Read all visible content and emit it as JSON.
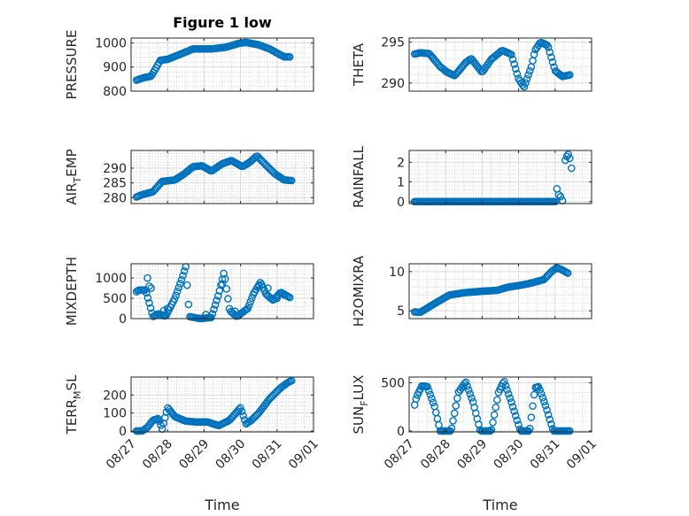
{
  "figure": {
    "title": "Figure 1 low"
  },
  "colors": {
    "marker": "#0072BD",
    "axis": "#262626",
    "grid": "#d6d6d6"
  },
  "chart_data": [
    {
      "id": "pressure",
      "type": "scatter",
      "marker": "circle",
      "title": "Figure 1 low",
      "ylabel": "PRESSURE",
      "ylabel_sub": "",
      "ylabel_rest": "",
      "xlabel": "",
      "show_xticklabels": false,
      "xlim": [
        0,
        5
      ],
      "ylim": [
        800,
        1020
      ],
      "yticks": [
        800,
        900,
        1000
      ],
      "ytick_labels": [
        "800",
        "900",
        "1000"
      ],
      "xticks": [
        0,
        1,
        2,
        3,
        4,
        5
      ],
      "xtick_labels": [
        "08/27",
        "08/28",
        "08/29",
        "08/30",
        "08/31",
        "09/01"
      ],
      "grid": true,
      "minor_grid": true,
      "x_start": 0.15,
      "x_end": 4.35,
      "curve": [
        [
          0,
          838
        ],
        [
          0.35,
          856
        ],
        [
          0.55,
          862
        ],
        [
          0.7,
          900
        ],
        [
          0.8,
          928
        ],
        [
          1.0,
          932
        ],
        [
          1.3,
          950
        ],
        [
          1.7,
          975
        ],
        [
          2.2,
          975
        ],
        [
          2.6,
          982
        ],
        [
          2.95,
          998
        ],
        [
          3.15,
          1002
        ],
        [
          3.5,
          992
        ],
        [
          3.8,
          975
        ],
        [
          4.0,
          958
        ],
        [
          4.2,
          942
        ]
      ]
    },
    {
      "id": "theta",
      "type": "scatter",
      "marker": "circle",
      "title": "",
      "ylabel": "THETA",
      "ylabel_sub": "",
      "ylabel_rest": "",
      "xlabel": "",
      "show_xticklabels": false,
      "xlim": [
        0,
        5
      ],
      "ylim": [
        289,
        295.5
      ],
      "yticks": [
        290,
        295
      ],
      "ytick_labels": [
        "290",
        "295"
      ],
      "xticks": [
        0,
        1,
        2,
        3,
        4,
        5
      ],
      "xtick_labels": [
        "08/27",
        "08/28",
        "08/29",
        "08/30",
        "08/31",
        "09/01"
      ],
      "grid": true,
      "minor_grid": true,
      "x_start": 0.15,
      "x_end": 4.4,
      "curve": [
        [
          0,
          293.4
        ],
        [
          0.3,
          293.7
        ],
        [
          0.55,
          293.6
        ],
        [
          0.85,
          292
        ],
        [
          1.05,
          291.3
        ],
        [
          1.25,
          290.9
        ],
        [
          1.55,
          292.5
        ],
        [
          1.7,
          293.0
        ],
        [
          2.0,
          291.3
        ],
        [
          2.25,
          292.9
        ],
        [
          2.55,
          294.0
        ],
        [
          2.8,
          293.5
        ],
        [
          3.0,
          290.5
        ],
        [
          3.15,
          289.5
        ],
        [
          3.35,
          292.0
        ],
        [
          3.45,
          294.0
        ],
        [
          3.6,
          295.0
        ],
        [
          3.8,
          294.6
        ],
        [
          4.0,
          291.5
        ],
        [
          4.2,
          290.8
        ],
        [
          4.4,
          291.0
        ]
      ]
    },
    {
      "id": "air_temp",
      "type": "scatter",
      "marker": "circle",
      "title": "",
      "ylabel": "AIR",
      "ylabel_sub": "T",
      "ylabel_rest": "EMP",
      "xlabel": "",
      "show_xticklabels": false,
      "xlim": [
        0,
        5
      ],
      "ylim": [
        278,
        296
      ],
      "yticks": [
        280,
        285,
        290
      ],
      "ytick_labels": [
        "280",
        "285",
        "290"
      ],
      "xticks": [
        0,
        1,
        2,
        3,
        4,
        5
      ],
      "xtick_labels": [
        "08/27",
        "08/28",
        "08/29",
        "08/30",
        "08/31",
        "09/01"
      ],
      "grid": true,
      "minor_grid": true,
      "x_start": 0.15,
      "x_end": 4.4,
      "curve": [
        [
          0,
          279.5
        ],
        [
          0.3,
          281.0
        ],
        [
          0.6,
          282.0
        ],
        [
          0.85,
          285.5
        ],
        [
          1.2,
          286.0
        ],
        [
          1.45,
          288.0
        ],
        [
          1.7,
          290.5
        ],
        [
          1.95,
          290.8
        ],
        [
          2.2,
          289.0
        ],
        [
          2.5,
          291.5
        ],
        [
          2.75,
          292.6
        ],
        [
          3.05,
          290.5
        ],
        [
          3.25,
          292.0
        ],
        [
          3.45,
          294.2
        ],
        [
          3.7,
          291.0
        ],
        [
          3.95,
          288.0
        ],
        [
          4.2,
          286.0
        ],
        [
          4.4,
          285.8
        ]
      ]
    },
    {
      "id": "rainfall",
      "type": "scatter",
      "marker": "circle",
      "title": "",
      "ylabel": "RAINFALL",
      "ylabel_sub": "",
      "ylabel_rest": "",
      "xlabel": "",
      "show_xticklabels": false,
      "xlim": [
        0,
        5
      ],
      "ylim": [
        -0.1,
        2.6
      ],
      "yticks": [
        0,
        1,
        2
      ],
      "ytick_labels": [
        "0",
        "1",
        "2"
      ],
      "xticks": [
        0,
        1,
        2,
        3,
        4,
        5
      ],
      "xtick_labels": [
        "08/27",
        "08/28",
        "08/29",
        "08/30",
        "08/31",
        "09/01"
      ],
      "grid": true,
      "minor_grid": true,
      "x_start": 0.15,
      "x_end": 4.0,
      "curve": [
        [
          0,
          0
        ],
        [
          4.0,
          0
        ]
      ],
      "extra_points": [
        [
          4.05,
          0.65
        ],
        [
          4.1,
          0.35
        ],
        [
          4.15,
          0.25
        ],
        [
          4.2,
          0.05
        ],
        [
          4.28,
          2.1
        ],
        [
          4.32,
          2.3
        ],
        [
          4.36,
          2.4
        ],
        [
          4.4,
          2.2
        ],
        [
          4.45,
          1.7
        ]
      ]
    },
    {
      "id": "mixdepth",
      "type": "scatter",
      "marker": "circle",
      "title": "",
      "ylabel": "MIXDEPTH",
      "ylabel_sub": "",
      "ylabel_rest": "",
      "xlabel": "",
      "show_xticklabels": false,
      "xlim": [
        0,
        5
      ],
      "ylim": [
        0,
        1350
      ],
      "yticks": [
        0,
        500,
        1000
      ],
      "ytick_labels": [
        "0",
        "500",
        "1000"
      ],
      "xticks": [
        0,
        1,
        2,
        3,
        4,
        5
      ],
      "xtick_labels": [
        "08/27",
        "08/28",
        "08/29",
        "08/30",
        "08/31",
        "09/01"
      ],
      "grid": true,
      "minor_grid": true,
      "x_start": 0.15,
      "x_end": 4.35,
      "curve": [
        [
          0,
          550
        ],
        [
          0.2,
          700
        ],
        [
          0.4,
          700
        ],
        [
          0.6,
          50
        ],
        [
          0.75,
          120
        ],
        [
          0.95,
          60
        ],
        [
          1.2,
          500
        ],
        [
          1.4,
          1000
        ],
        [
          1.5,
          1280
        ],
        [
          1.6,
          50
        ],
        [
          1.9,
          0
        ],
        [
          2.2,
          30
        ],
        [
          2.4,
          600
        ],
        [
          2.55,
          1150
        ],
        [
          2.7,
          200
        ],
        [
          2.9,
          50
        ],
        [
          3.2,
          250
        ],
        [
          3.35,
          600
        ],
        [
          3.55,
          900
        ],
        [
          3.7,
          600
        ],
        [
          3.9,
          450
        ],
        [
          4.1,
          650
        ],
        [
          4.35,
          520
        ]
      ],
      "extra_points": [
        [
          0.45,
          1000
        ],
        [
          0.5,
          800
        ],
        [
          0.55,
          750
        ],
        [
          0.9,
          200
        ],
        [
          1.0,
          250
        ],
        [
          2.05,
          100
        ],
        [
          2.5,
          850
        ],
        [
          2.85,
          180
        ],
        [
          3.5,
          800
        ],
        [
          3.75,
          750
        ],
        [
          4.0,
          500
        ],
        [
          4.2,
          580
        ]
      ]
    },
    {
      "id": "h2omixra",
      "type": "scatter",
      "marker": "circle",
      "title": "",
      "ylabel": "H2OMIXRA",
      "ylabel_sub": "",
      "ylabel_rest": "",
      "xlabel": "",
      "show_xticklabels": false,
      "xlim": [
        0,
        5
      ],
      "ylim": [
        4,
        11
      ],
      "yticks": [
        5,
        10
      ],
      "ytick_labels": [
        "5",
        "10"
      ],
      "xticks": [
        0,
        1,
        2,
        3,
        4,
        5
      ],
      "xtick_labels": [
        "08/27",
        "08/28",
        "08/29",
        "08/30",
        "08/31",
        "09/01"
      ],
      "grid": true,
      "minor_grid": true,
      "x_start": 0.15,
      "x_end": 4.35,
      "curve": [
        [
          0,
          4.9
        ],
        [
          0.3,
          4.8
        ],
        [
          0.55,
          5.5
        ],
        [
          0.8,
          6.2
        ],
        [
          1.1,
          7.0
        ],
        [
          1.5,
          7.3
        ],
        [
          2.0,
          7.5
        ],
        [
          2.4,
          7.6
        ],
        [
          2.7,
          8.0
        ],
        [
          3.1,
          8.3
        ],
        [
          3.4,
          8.6
        ],
        [
          3.7,
          9.0
        ],
        [
          3.9,
          10.0
        ],
        [
          4.05,
          10.5
        ],
        [
          4.2,
          10.2
        ],
        [
          4.35,
          9.8
        ]
      ]
    },
    {
      "id": "terr_msl",
      "type": "scatter",
      "marker": "circle",
      "title": "",
      "ylabel": "TERR",
      "ylabel_sub": "M",
      "ylabel_rest": "SL",
      "xlabel": "Time",
      "show_xticklabels": true,
      "xlim": [
        0,
        5
      ],
      "ylim": [
        -5,
        300
      ],
      "yticks": [
        0,
        100,
        200
      ],
      "ytick_labels": [
        "0",
        "100",
        "200"
      ],
      "xticks": [
        0,
        1,
        2,
        3,
        4,
        5
      ],
      "xtick_labels": [
        "08/27",
        "08/28",
        "08/29",
        "08/30",
        "08/31",
        "09/01"
      ],
      "grid": true,
      "minor_grid": true,
      "x_start": 0.15,
      "x_end": 4.4,
      "curve": [
        [
          0,
          0
        ],
        [
          0.3,
          0
        ],
        [
          0.45,
          20
        ],
        [
          0.6,
          60
        ],
        [
          0.75,
          70
        ],
        [
          0.85,
          10
        ],
        [
          1.0,
          130
        ],
        [
          1.2,
          80
        ],
        [
          1.5,
          55
        ],
        [
          1.8,
          50
        ],
        [
          2.1,
          50
        ],
        [
          2.4,
          30
        ],
        [
          2.7,
          60
        ],
        [
          3.0,
          130
        ],
        [
          3.15,
          40
        ],
        [
          3.3,
          60
        ],
        [
          3.5,
          100
        ],
        [
          3.8,
          180
        ],
        [
          4.1,
          240
        ],
        [
          4.3,
          270
        ],
        [
          4.4,
          280
        ]
      ]
    },
    {
      "id": "sun_flux",
      "type": "scatter",
      "marker": "circle",
      "title": "",
      "ylabel": "SUN",
      "ylabel_sub": "F",
      "ylabel_rest": "LUX",
      "xlabel": "Time",
      "show_xticklabels": true,
      "xlim": [
        0,
        5
      ],
      "ylim": [
        -10,
        560
      ],
      "yticks": [
        0,
        500
      ],
      "ytick_labels": [
        "0",
        "500"
      ],
      "xticks": [
        0,
        1,
        2,
        3,
        4,
        5
      ],
      "xtick_labels": [
        "08/27",
        "08/28",
        "08/29",
        "08/30",
        "08/31",
        "09/01"
      ],
      "grid": true,
      "minor_grid": true,
      "x_start": 0.15,
      "x_end": 4.4,
      "curve": [
        [
          0,
          30
        ],
        [
          0.2,
          350
        ],
        [
          0.35,
          470
        ],
        [
          0.5,
          460
        ],
        [
          0.7,
          250
        ],
        [
          0.85,
          0
        ],
        [
          1.15,
          0
        ],
        [
          1.35,
          400
        ],
        [
          1.55,
          510
        ],
        [
          1.75,
          300
        ],
        [
          1.95,
          0
        ],
        [
          2.25,
          0
        ],
        [
          2.45,
          400
        ],
        [
          2.6,
          520
        ],
        [
          2.8,
          300
        ],
        [
          3.05,
          0
        ],
        [
          3.3,
          0
        ],
        [
          3.45,
          450
        ],
        [
          3.55,
          460
        ],
        [
          3.75,
          250
        ],
        [
          3.95,
          0
        ],
        [
          4.4,
          0
        ]
      ]
    }
  ]
}
